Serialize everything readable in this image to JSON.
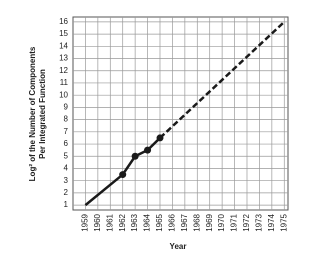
{
  "chart_data": {
    "type": "line",
    "x_label": "Year",
    "y_label_lines": [
      "Log² of the Number of Components",
      "Per Integrated Function"
    ],
    "xlim": [
      1958,
      1975.3
    ],
    "xticks": [
      1959,
      1960,
      1961,
      1962,
      1963,
      1964,
      1965,
      1966,
      1967,
      1968,
      1969,
      1970,
      1971,
      1972,
      1973,
      1974,
      1975
    ],
    "ylim": [
      0.6,
      16.4
    ],
    "yticks": [
      1,
      2,
      3,
      4,
      5,
      6,
      7,
      8,
      9,
      10,
      11,
      12,
      13,
      14,
      15,
      16
    ],
    "grid": true,
    "series": [
      {
        "color": "#1a1a1a",
        "line_style": "solid",
        "x": [
          1959,
          1962,
          1963,
          1964,
          1965
        ],
        "values": [
          1,
          3.5,
          5,
          5.5,
          6.5
        ],
        "markers": [
          false,
          true,
          true,
          true,
          true
        ]
      },
      {
        "color": "#1a1a1a",
        "line_style": "dashed",
        "x": [
          1965,
          1975
        ],
        "values": [
          6.5,
          16
        ],
        "markers": [
          false,
          false
        ]
      }
    ]
  }
}
